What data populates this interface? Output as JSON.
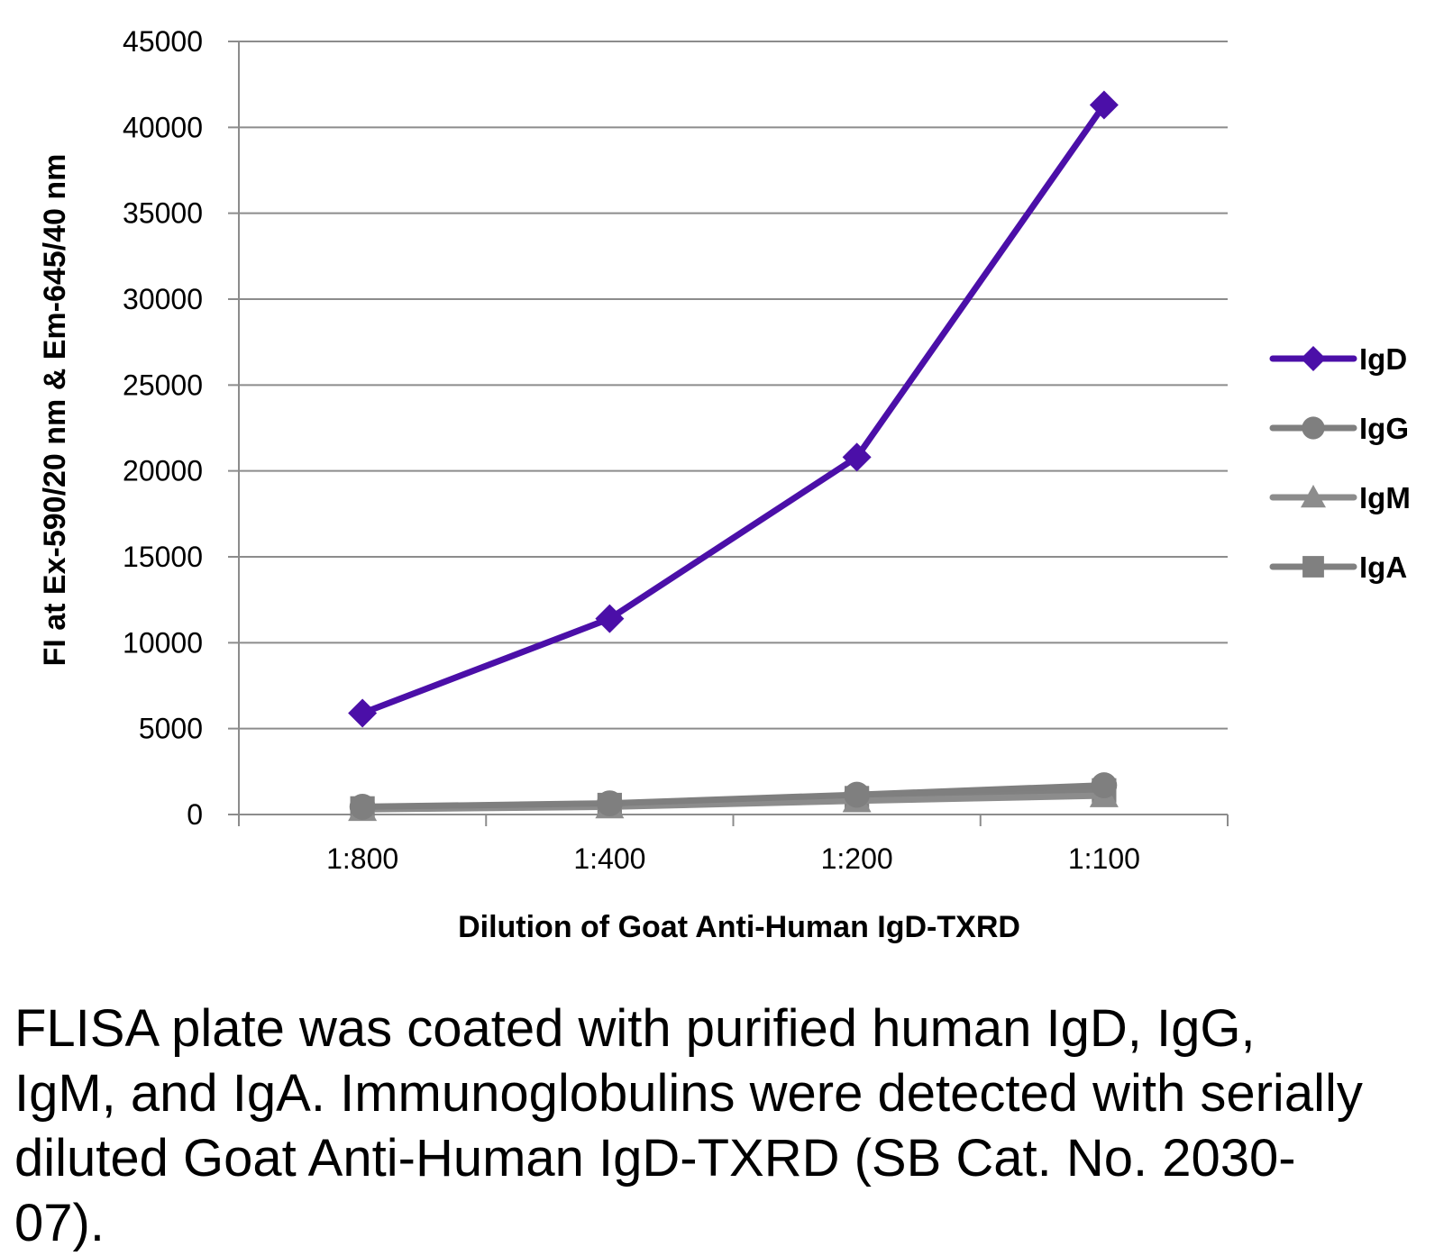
{
  "chart_data": {
    "type": "line",
    "categories": [
      "1:800",
      "1:400",
      "1:200",
      "1:100"
    ],
    "xlabel": "Dilution of Goat Anti-Human IgD-TXRD",
    "ylabel": "FI at Ex-590/20 nm & Em-645/40 nm",
    "ylim": [
      0,
      45000
    ],
    "yticks": [
      "0",
      "5000",
      "10000",
      "15000",
      "20000",
      "25000",
      "30000",
      "35000",
      "40000",
      "45000"
    ],
    "grid": true,
    "legend_position": "right",
    "series": [
      {
        "name": "IgD",
        "color": "#4b0fa8",
        "marker": "diamond",
        "values": [
          5900,
          11400,
          20800,
          41300
        ]
      },
      {
        "name": "IgG",
        "color": "#7f7f7f",
        "marker": "circle",
        "values": [
          450,
          650,
          1150,
          1700
        ]
      },
      {
        "name": "IgM",
        "color": "#8c8c8c",
        "marker": "triangle",
        "values": [
          300,
          450,
          800,
          1100
        ]
      },
      {
        "name": "IgA",
        "color": "#808080",
        "marker": "square",
        "values": [
          350,
          550,
          950,
          1400
        ]
      }
    ]
  },
  "caption": "FLISA plate was coated with purified human IgD, IgG, IgM, and IgA.  Immunoglobulins were detected with serially diluted Goat Anti-Human IgD-TXRD (SB Cat. No. 2030-07)."
}
